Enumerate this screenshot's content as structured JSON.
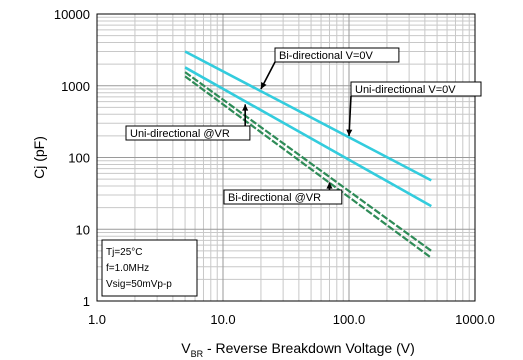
{
  "chart_data": {
    "type": "line",
    "x_scale": "log",
    "y_scale": "log",
    "xlim": [
      1,
      1000
    ],
    "ylim": [
      1,
      10000
    ],
    "grid": true,
    "x_ticks": [
      "1.0",
      "10.0",
      "100.0",
      "1000.0"
    ],
    "y_ticks": [
      "1",
      "10",
      "100",
      "1000",
      "10000"
    ],
    "xlabel": {
      "main": "V",
      "sub": "BR",
      "rest": " - Reverse Breakdown Voltage (V)"
    },
    "ylabel": "Cj (pF)",
    "series": [
      {
        "name": "Bi-directional V=0V",
        "color": "#33ccdd",
        "style": "solid",
        "x": [
          5,
          450
        ],
        "y": [
          3000,
          48
        ]
      },
      {
        "name": "Uni-directional V=0V",
        "color": "#33ccdd",
        "style": "solid",
        "x": [
          5,
          450
        ],
        "y": [
          1800,
          21
        ]
      },
      {
        "name": "Uni-directional @VR",
        "color": "#2e8b57",
        "style": "dashed",
        "x": [
          5,
          450
        ],
        "y": [
          1550,
          5
        ]
      },
      {
        "name": "Bi-directional @VR",
        "color": "#2e8b57",
        "style": "dashed",
        "x": [
          5,
          450
        ],
        "y": [
          1350,
          4
        ]
      }
    ],
    "annotations": [
      {
        "text": "Bi-directional V=0V",
        "target_x": 20,
        "target_y": 900
      },
      {
        "text": "Uni-directional V=0V",
        "target_x": 100,
        "target_y": 200
      },
      {
        "text": "Uni-directional @VR",
        "target_x": 15,
        "target_y": 550
      },
      {
        "text": "Bi-directional @VR",
        "target_x": 70,
        "target_y": 45
      }
    ],
    "conditions": [
      "Tj=25°C",
      "f=1.0MHz",
      "Vsig=50mVp-p"
    ]
  }
}
